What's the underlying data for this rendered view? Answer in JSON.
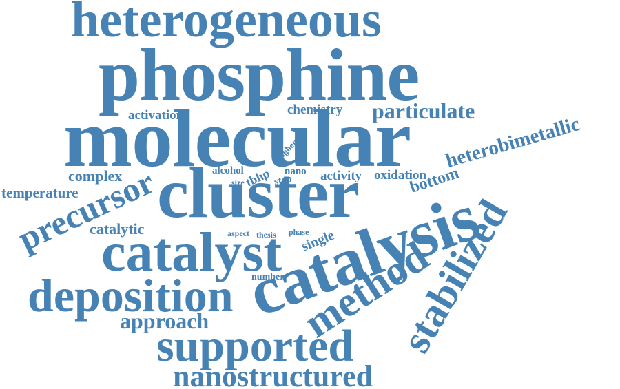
{
  "word_cloud": {
    "color": "#4682b4",
    "words": [
      {
        "text": "heterogeneous",
        "rotation": 0
      },
      {
        "text": "phosphine",
        "rotation": 0
      },
      {
        "text": "molecular",
        "rotation": 0
      },
      {
        "text": "cluster",
        "rotation": 0
      },
      {
        "text": "catalysis",
        "rotation": -20
      },
      {
        "text": "catalyst",
        "rotation": 0
      },
      {
        "text": "deposition",
        "rotation": 0
      },
      {
        "text": "supported",
        "rotation": 0
      },
      {
        "text": "nanostructured",
        "rotation": 0
      },
      {
        "text": "method",
        "rotation": -33
      },
      {
        "text": "stabilized",
        "rotation": -60
      },
      {
        "text": "precursor",
        "rotation": -25
      },
      {
        "text": "particulate",
        "rotation": 0
      },
      {
        "text": "heterobimetallic",
        "rotation": -16
      },
      {
        "text": "approach",
        "rotation": 0
      },
      {
        "text": "temperature",
        "rotation": 0
      },
      {
        "text": "complex",
        "rotation": 0
      },
      {
        "text": "catalytic",
        "rotation": 0
      },
      {
        "text": "activation",
        "rotation": 0
      },
      {
        "text": "chemistry",
        "rotation": 0
      },
      {
        "text": "bottom",
        "rotation": -18
      },
      {
        "text": "oxidation",
        "rotation": 0
      },
      {
        "text": "activity",
        "rotation": 0
      },
      {
        "text": "single",
        "rotation": -22
      },
      {
        "text": "alcohol",
        "rotation": 0
      },
      {
        "text": "tbhp",
        "rotation": -25
      },
      {
        "text": "nano",
        "rotation": 0
      },
      {
        "text": "step",
        "rotation": -12
      },
      {
        "text": "size",
        "rotation": 0
      },
      {
        "text": "higher",
        "rotation": -45
      },
      {
        "text": "aspect",
        "rotation": 0
      },
      {
        "text": "thesis",
        "rotation": 0
      },
      {
        "text": "phase",
        "rotation": 0
      },
      {
        "text": "number",
        "rotation": 0
      }
    ]
  }
}
